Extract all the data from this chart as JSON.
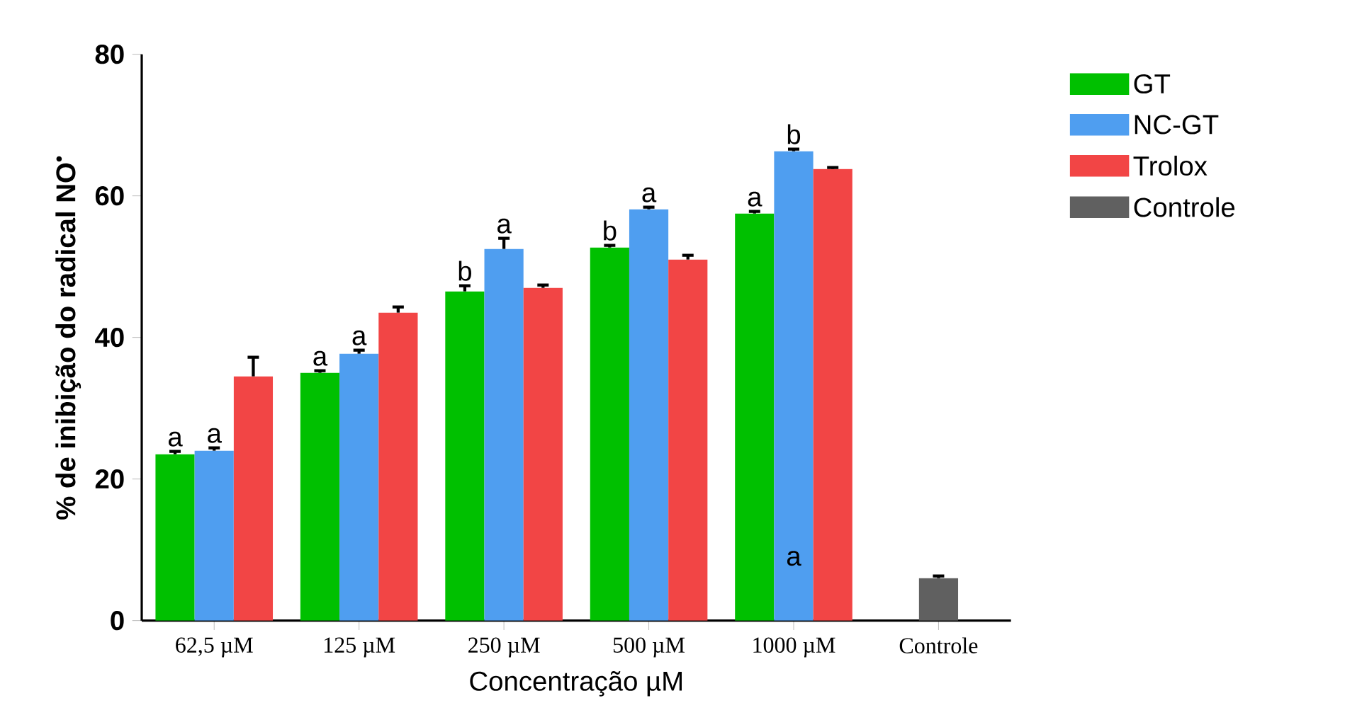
{
  "chart_data": {
    "type": "bar",
    "ylabel": "% de inibição do radical NO$^{•}$",
    "xlabel": "Concentração µM",
    "categories": [
      "62,5 µM",
      "125 µM",
      "250 µM",
      "500 µM",
      "1000 µM",
      "Controle"
    ],
    "series": [
      {
        "name": "GT",
        "color": "#00c000",
        "values": [
          23.5,
          35,
          46.5,
          52.7,
          57.5,
          null
        ],
        "errors": [
          0.4,
          0.3,
          0.8,
          0.3,
          0.3,
          null
        ],
        "value_labels": [
          "a",
          "a",
          "b",
          "b",
          "a",
          null
        ]
      },
      {
        "name": "NC-GT",
        "color": "#4f9ef0",
        "values": [
          24,
          37.7,
          52.5,
          58.1,
          66.3,
          null
        ],
        "errors": [
          0.4,
          0.5,
          1.5,
          0.3,
          0.3,
          null
        ],
        "value_labels": [
          "a",
          "a",
          "a",
          "a",
          "b",
          null
        ]
      },
      {
        "name": "Trolox",
        "color": "#f24545",
        "values": [
          34.5,
          43.5,
          47,
          51,
          63.8,
          null
        ],
        "errors": [
          2.7,
          0.8,
          0.4,
          0.6,
          0.2,
          null
        ]
      },
      {
        "name": "Controle",
        "color": "#606060",
        "values": [
          null,
          null,
          null,
          null,
          null,
          6
        ],
        "errors": [
          null,
          null,
          null,
          null,
          null,
          0.3
        ]
      }
    ],
    "ylim": [
      0,
      80
    ],
    "yticks": [
      0,
      20,
      40,
      60,
      80
    ],
    "legend": "right",
    "annotations": [
      "a"
    ]
  }
}
